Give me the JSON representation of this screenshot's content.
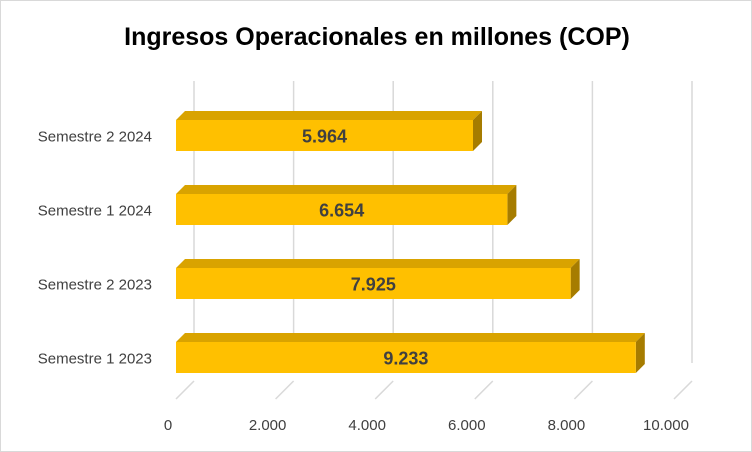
{
  "chart_data": {
    "type": "bar",
    "orientation": "horizontal",
    "style": "3d",
    "title": "Ingresos Operacionales en millones (COP)",
    "categories": [
      "Semestre 1 2023",
      "Semestre 2 2023",
      "Semestre 1 2024",
      "Semestre 2 2024"
    ],
    "values": [
      9233,
      7925,
      6654,
      5964
    ],
    "data_labels": [
      "9.233",
      "7.925",
      "6.654",
      "5.964"
    ],
    "xlim": [
      0,
      10000
    ],
    "x_ticks": [
      0,
      2000,
      4000,
      6000,
      8000,
      10000
    ],
    "x_tick_labels": [
      "0",
      "2.000",
      "4.000",
      "6.000",
      "8.000",
      "10.000"
    ],
    "grid": true,
    "legend": "none",
    "colors": {
      "bar_front": "#ffc000",
      "bar_top": "#d9a300",
      "bar_side": "#a67c00",
      "grid": "#d9d9d9",
      "text": "#404040"
    }
  }
}
